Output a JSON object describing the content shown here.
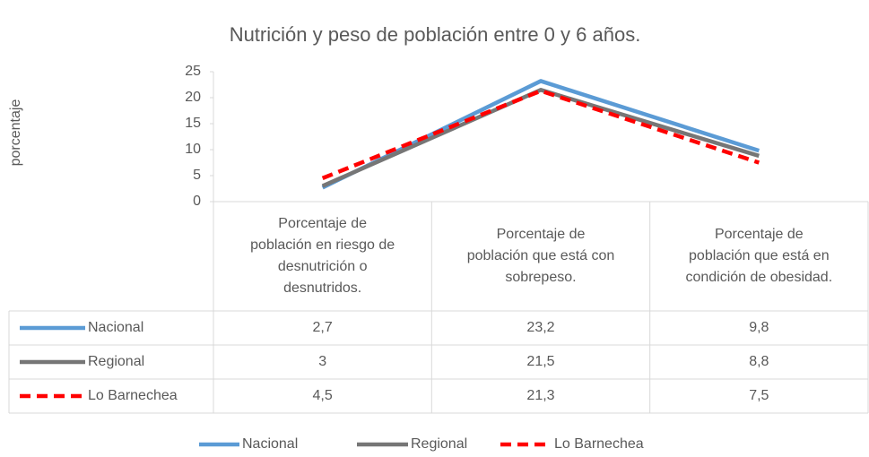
{
  "chart_data": {
    "type": "line",
    "title": "Nutrición y peso de población entre 0 y 6 años.",
    "y_label": "porcentaje",
    "categories": [
      "Porcentaje de población en riesgo de desnutrición o desnutridos.",
      "Porcentaje de población que está con sobrepeso.",
      "Porcentaje de población que está en condición de obesidad."
    ],
    "series": [
      {
        "name": "Nacional",
        "color": "#5b9bd5",
        "dash": false,
        "values": [
          2.7,
          23.2,
          9.8
        ],
        "value_labels": [
          "2,7",
          "23,2",
          "9,8"
        ]
      },
      {
        "name": "Regional",
        "color": "#767676",
        "dash": false,
        "values": [
          3,
          21.5,
          8.8
        ],
        "value_labels": [
          "3",
          "21,5",
          "8,8"
        ]
      },
      {
        "name": "Lo Barnechea",
        "color": "#ff0000",
        "dash": true,
        "values": [
          4.5,
          21.3,
          7.5
        ],
        "value_labels": [
          "4,5",
          "21,3",
          "7,5"
        ]
      }
    ],
    "ylim": [
      0,
      25
    ],
    "yticks": [
      0,
      5,
      10,
      15,
      20,
      25
    ],
    "grid": false,
    "legend": "bottom"
  }
}
